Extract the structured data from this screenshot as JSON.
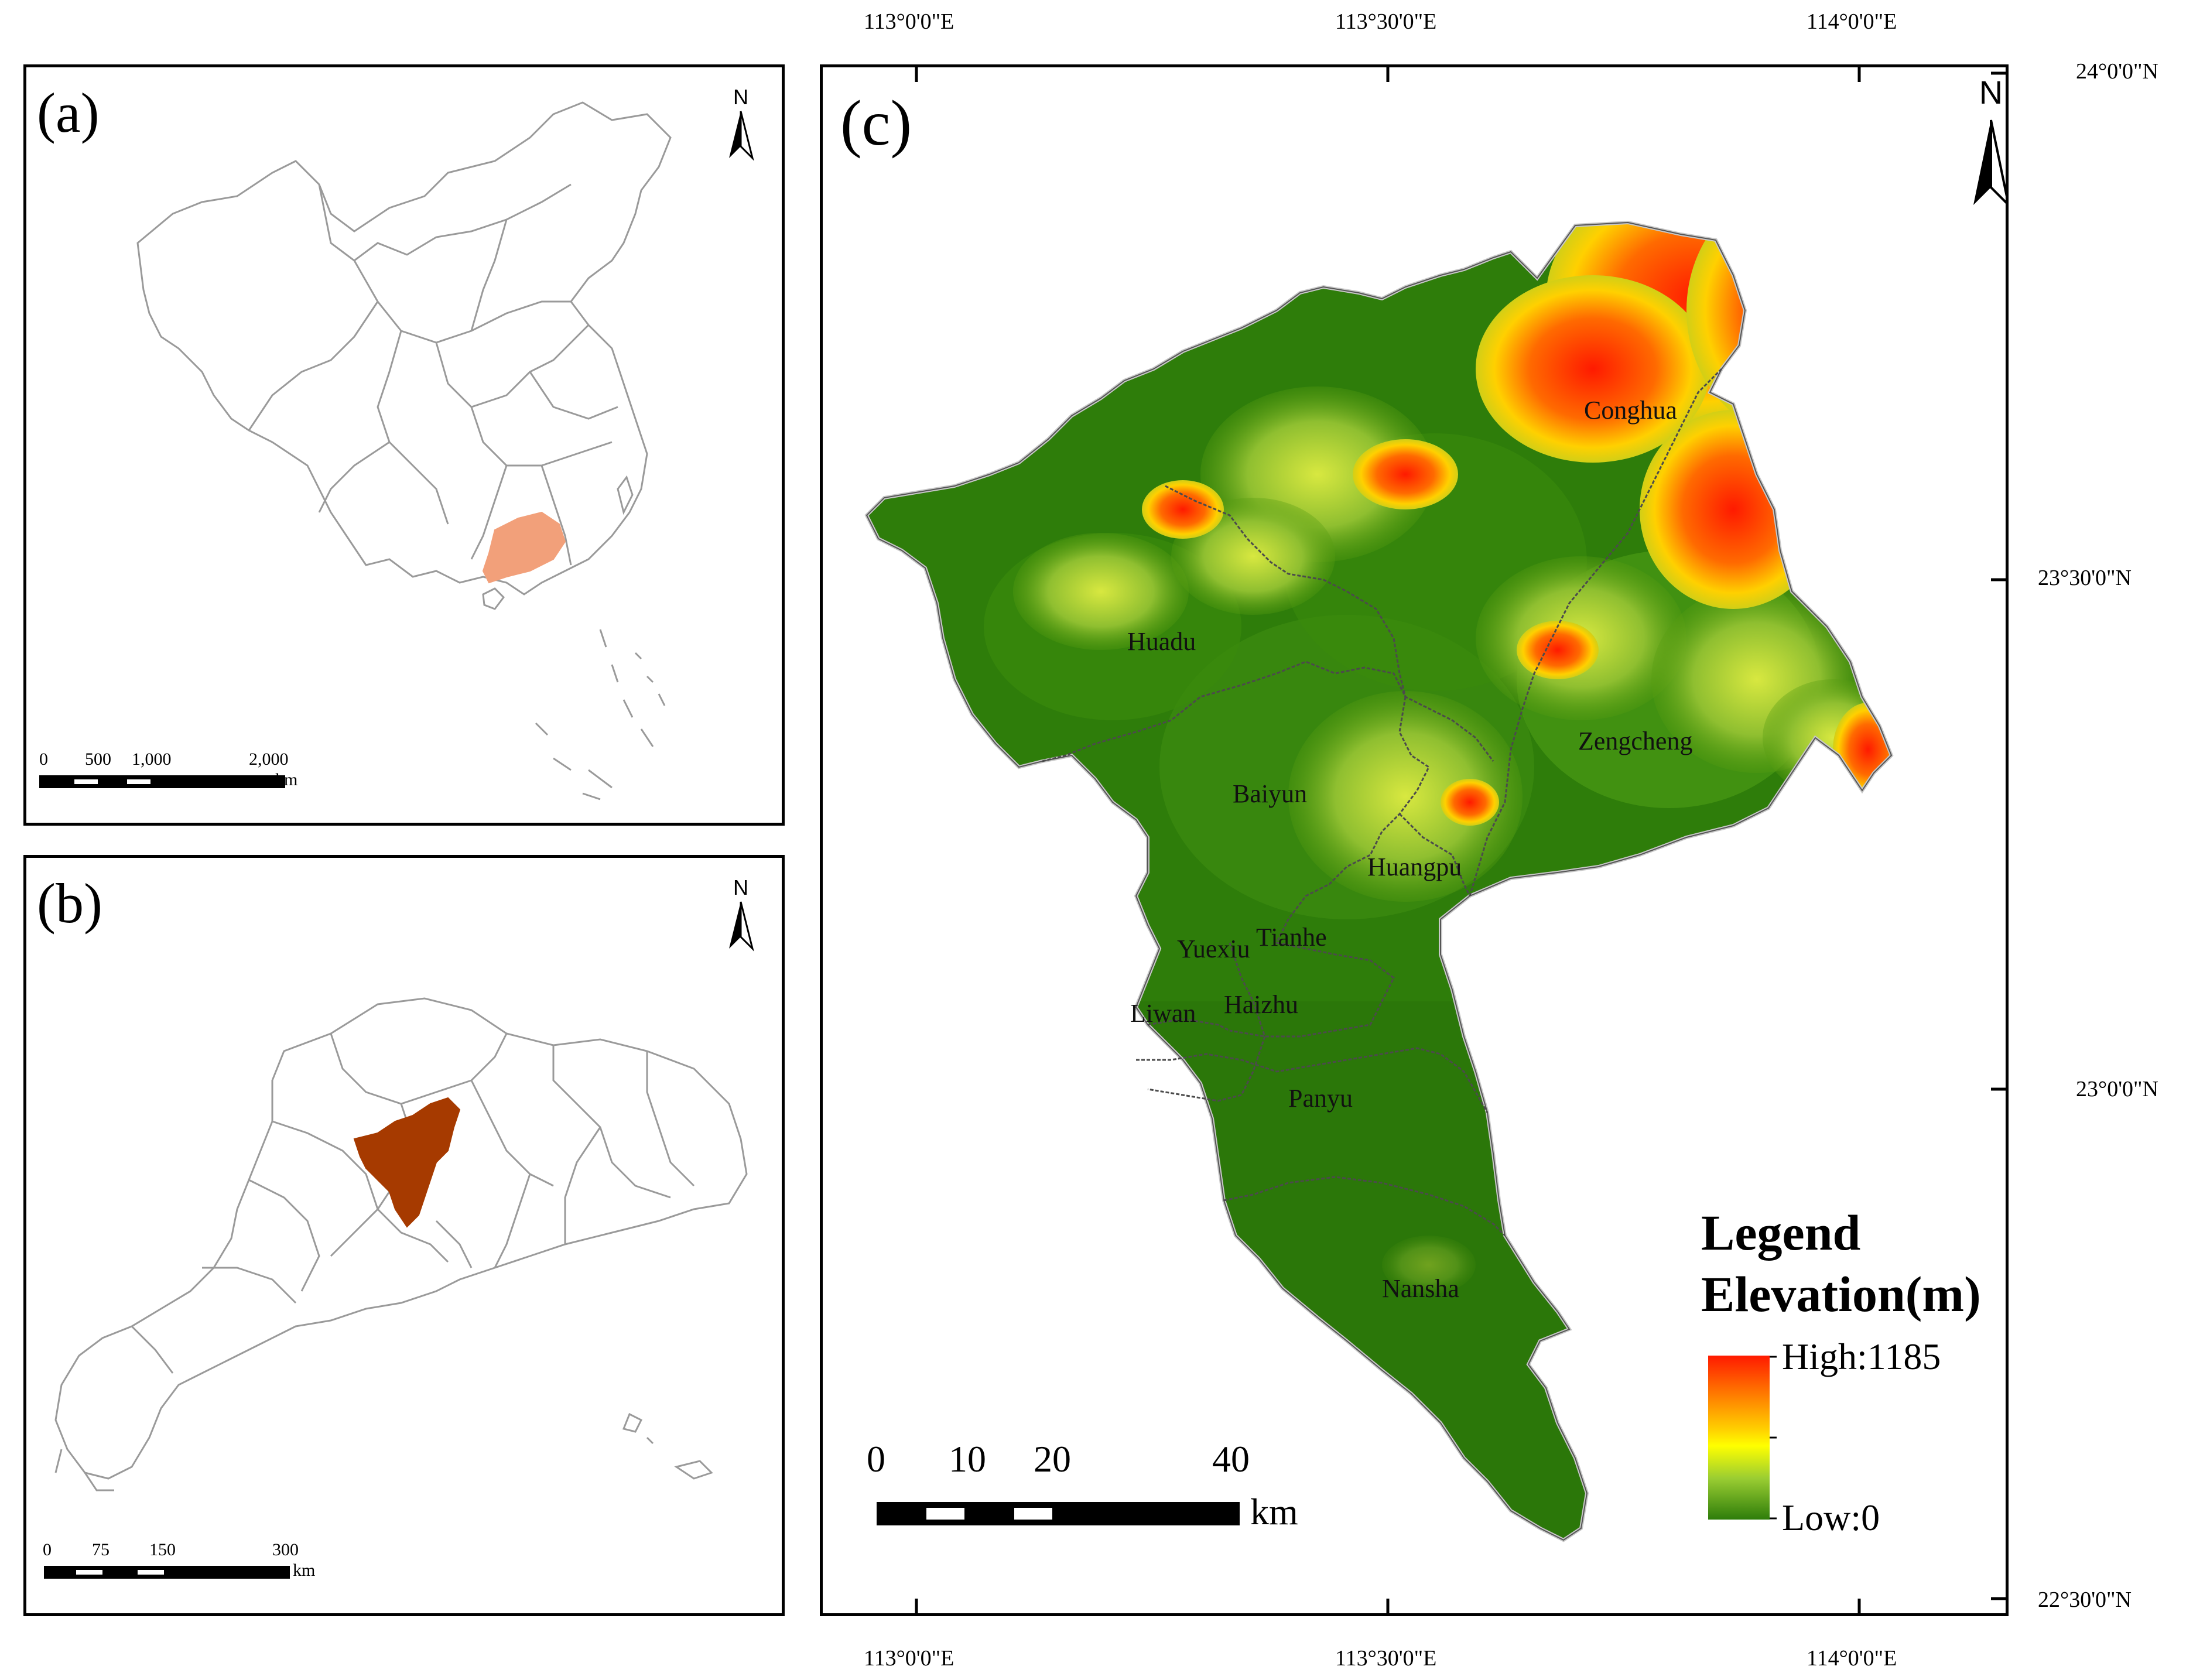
{
  "panels": {
    "a": {
      "label": "(a)",
      "north": "N",
      "scale": {
        "ticks": [
          "0",
          "500",
          "1,000",
          "2,000"
        ],
        "unit": "km"
      }
    },
    "b": {
      "label": "(b)",
      "north": "N",
      "scale": {
        "ticks": [
          "0",
          "75",
          "150",
          "300"
        ],
        "unit": "km"
      }
    },
    "c": {
      "label": "(c)",
      "north": "N",
      "scale": {
        "ticks": [
          "0",
          "10",
          "20",
          "40"
        ],
        "unit": "km"
      }
    }
  },
  "coordinates": {
    "longitude_top": [
      "113°0'0\"E",
      "113°30'0\"E",
      "114°0'0\"E"
    ],
    "longitude_bottom": [
      "113°0'0\"E",
      "113°30'0\"E",
      "114°0'0\"E"
    ],
    "latitude_right": [
      "24°0'0\"N",
      "23°30'0\"N",
      "23°0'0\"N",
      "22°30'0\"N"
    ]
  },
  "districts": [
    "Conghua",
    "Huadu",
    "Zengcheng",
    "Baiyun",
    "Huangpu",
    "Tianhe",
    "Yuexiu",
    "Liwan",
    "Haizhu",
    "Panyu",
    "Nansha"
  ],
  "legend": {
    "title": "Legend",
    "subtitle": "Elevation(m)",
    "high": "High:1185",
    "low": "Low:0",
    "colors": [
      "#ff1a00",
      "#ff8000",
      "#ffd000",
      "#ffff00",
      "#9acd32",
      "#3a8a00",
      "#1f6a00"
    ]
  },
  "colors": {
    "guangdong_highlight": "#f2a07a",
    "guangzhou_highlight": "#a63a00",
    "boundary": "#9a9a9a",
    "lowland": "#2e7d0a"
  }
}
